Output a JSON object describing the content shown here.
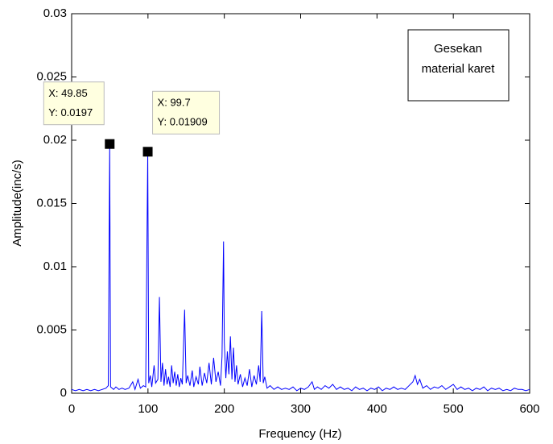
{
  "chart_data": {
    "type": "line",
    "xlabel": "Frequency (Hz)",
    "ylabel": "Amplitude(inc/s)",
    "color": "#0000ff",
    "xlim": [
      0,
      600
    ],
    "xticks": [
      0,
      100,
      200,
      300,
      400,
      500,
      600
    ],
    "ylim": [
      0,
      0.03
    ],
    "yticks": [
      0,
      0.005,
      0.01,
      0.015,
      0.02,
      0.025,
      0.03
    ],
    "annotation": [
      "Gesekan",
      "material karet"
    ],
    "data_tips": [
      {
        "x": 49.85,
        "y": 0.0197,
        "labels": [
          "X: 49.85",
          "Y: 0.0197"
        ]
      },
      {
        "x": 99.7,
        "y": 0.01909,
        "labels": [
          "X: 99.7",
          "Y: 0.01909"
        ]
      }
    ],
    "x": [
      0,
      5,
      10,
      15,
      20,
      25,
      30,
      35,
      40,
      45,
      48,
      49.85,
      51,
      55,
      58,
      62,
      66,
      70,
      75,
      80,
      83,
      87,
      90,
      94,
      97,
      99.7,
      101,
      103,
      105,
      108,
      110,
      113,
      115,
      117,
      119,
      121,
      123,
      125,
      127,
      129,
      131,
      133,
      135,
      137,
      139,
      141,
      143,
      145,
      148,
      150,
      152,
      155,
      158,
      160,
      163,
      166,
      168,
      171,
      174,
      177,
      180,
      183,
      186,
      189,
      192,
      195,
      197,
      199,
      200,
      202,
      204,
      206,
      208,
      210,
      212,
      214,
      216,
      218,
      221,
      224,
      227,
      230,
      233,
      236,
      239,
      242,
      245,
      247,
      249,
      251,
      253,
      256,
      260,
      265,
      270,
      275,
      280,
      285,
      290,
      295,
      300,
      305,
      310,
      315,
      318,
      322,
      327,
      332,
      337,
      342,
      347,
      352,
      357,
      362,
      367,
      372,
      377,
      382,
      387,
      392,
      397,
      402,
      407,
      412,
      417,
      422,
      427,
      432,
      437,
      442,
      447,
      450,
      453,
      456,
      460,
      465,
      470,
      475,
      480,
      485,
      490,
      495,
      500,
      505,
      510,
      515,
      520,
      525,
      530,
      535,
      540,
      545,
      550,
      555,
      560,
      565,
      570,
      575,
      580,
      585,
      590,
      595,
      600
    ],
    "values": [
      0.0003,
      0.0002,
      0.0003,
      0.0002,
      0.0003,
      0.0002,
      0.0003,
      0.0002,
      0.0003,
      0.0004,
      0.0006,
      0.0197,
      0.0005,
      0.0003,
      0.0005,
      0.0003,
      0.0004,
      0.0003,
      0.0004,
      0.0009,
      0.0003,
      0.0011,
      0.0004,
      0.0006,
      0.0005,
      0.01909,
      0.0008,
      0.0014,
      0.0005,
      0.0022,
      0.0008,
      0.0011,
      0.0076,
      0.0009,
      0.0024,
      0.0006,
      0.0019,
      0.0007,
      0.0013,
      0.0005,
      0.0022,
      0.0008,
      0.0017,
      0.0006,
      0.0015,
      0.0005,
      0.0012,
      0.0007,
      0.0066,
      0.0008,
      0.0014,
      0.0006,
      0.0018,
      0.0005,
      0.0013,
      0.0007,
      0.0021,
      0.0006,
      0.0016,
      0.0008,
      0.0024,
      0.0007,
      0.0028,
      0.0009,
      0.0017,
      0.0006,
      0.0029,
      0.012,
      0.004,
      0.0012,
      0.0033,
      0.0015,
      0.0045,
      0.0011,
      0.0036,
      0.0009,
      0.0022,
      0.0007,
      0.0015,
      0.0005,
      0.0012,
      0.0006,
      0.0019,
      0.0005,
      0.0014,
      0.0007,
      0.0022,
      0.0009,
      0.0065,
      0.0008,
      0.0013,
      0.0004,
      0.0006,
      0.0003,
      0.0005,
      0.0003,
      0.0004,
      0.0003,
      0.0005,
      0.0002,
      0.0004,
      0.0003,
      0.0005,
      0.0009,
      0.0003,
      0.0005,
      0.0003,
      0.0006,
      0.0004,
      0.0007,
      0.0003,
      0.0005,
      0.0003,
      0.0004,
      0.0002,
      0.0005,
      0.0003,
      0.0004,
      0.0002,
      0.0004,
      0.0003,
      0.0005,
      0.0002,
      0.0004,
      0.0003,
      0.0005,
      0.0003,
      0.0004,
      0.0003,
      0.0006,
      0.0009,
      0.0014,
      0.0007,
      0.0011,
      0.0004,
      0.0006,
      0.0003,
      0.0005,
      0.0004,
      0.0006,
      0.0003,
      0.0005,
      0.0007,
      0.0003,
      0.0005,
      0.0003,
      0.0004,
      0.0002,
      0.0004,
      0.0003,
      0.0005,
      0.0002,
      0.0004,
      0.0003,
      0.0004,
      0.0002,
      0.0003,
      0.0002,
      0.0004,
      0.0003,
      0.0003,
      0.0002,
      0.0003
    ]
  }
}
